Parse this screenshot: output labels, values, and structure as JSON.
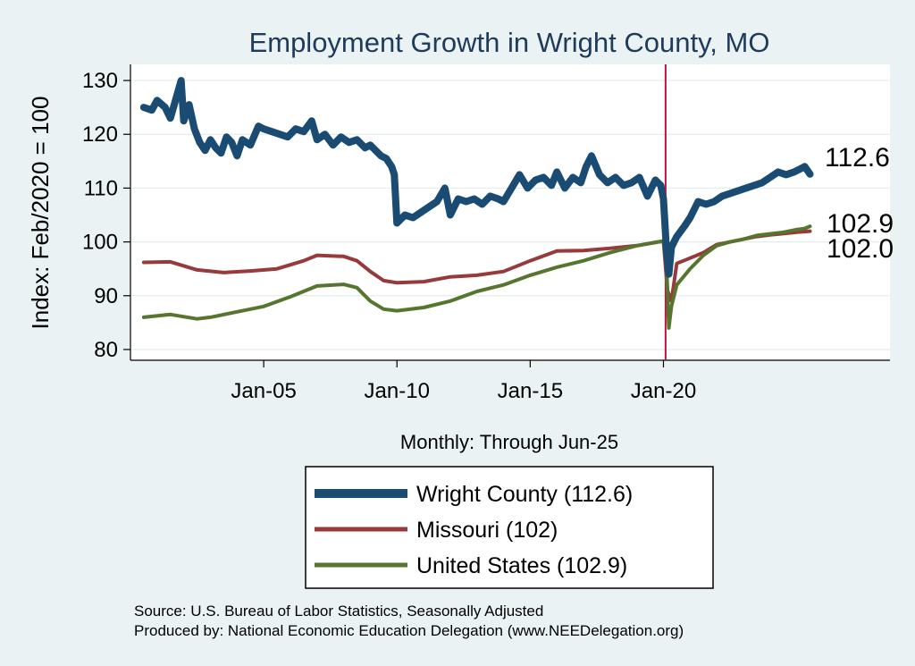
{
  "chart_data": {
    "type": "line",
    "title": "Employment Growth in Wright  County, MO",
    "ylabel": "Index: Feb/2020 = 100",
    "xlabel": "Monthly: Through Jun-25",
    "ylim": [
      78,
      133
    ],
    "xlim": [
      2000.0,
      2028.5
    ],
    "yticks": [
      80,
      90,
      100,
      110,
      120,
      130
    ],
    "xticks": [
      {
        "value": 2005,
        "label": "Jan-05"
      },
      {
        "value": 2010,
        "label": "Jan-10"
      },
      {
        "value": 2015,
        "label": "Jan-15"
      },
      {
        "value": 2020,
        "label": "Jan-20"
      }
    ],
    "reference_line": {
      "x": 2020.08,
      "color": "#c0143c"
    },
    "series": [
      {
        "name": "Wright  County",
        "legend_label": "Wright  County (112.6)",
        "end_label": "112.6",
        "color": "#1a4b72",
        "x": [
          2000.5,
          2000.8,
          2001.0,
          2001.3,
          2001.5,
          2001.7,
          2001.9,
          2002.0,
          2002.2,
          2002.4,
          2002.6,
          2002.8,
          2003.0,
          2003.2,
          2003.4,
          2003.6,
          2003.8,
          2004.0,
          2004.2,
          2004.5,
          2004.8,
          2005.0,
          2005.3,
          2005.6,
          2005.9,
          2006.2,
          2006.5,
          2006.8,
          2007.0,
          2007.3,
          2007.6,
          2007.9,
          2008.2,
          2008.5,
          2008.8,
          2009.0,
          2009.2,
          2009.4,
          2009.6,
          2009.8,
          2009.9,
          2010.0,
          2010.3,
          2010.6,
          2010.9,
          2011.2,
          2011.5,
          2011.8,
          2012.0,
          2012.3,
          2012.6,
          2012.9,
          2013.2,
          2013.5,
          2013.8,
          2014.0,
          2014.3,
          2014.6,
          2014.9,
          2015.2,
          2015.5,
          2015.8,
          2016.0,
          2016.3,
          2016.6,
          2016.9,
          2017.1,
          2017.3,
          2017.6,
          2017.9,
          2018.2,
          2018.5,
          2018.8,
          2019.1,
          2019.4,
          2019.7,
          2019.9,
          2020.0,
          2020.1,
          2020.2,
          2020.3,
          2020.5,
          2020.8,
          2021.0,
          2021.3,
          2021.6,
          2021.9,
          2022.2,
          2022.5,
          2022.8,
          2023.1,
          2023.4,
          2023.7,
          2024.0,
          2024.3,
          2024.6,
          2024.9,
          2025.1,
          2025.3,
          2025.5
        ],
        "values": [
          125.0,
          124.5,
          126.3,
          125.0,
          123.0,
          126.5,
          130.0,
          122.5,
          125.5,
          121.0,
          118.5,
          117.0,
          119.0,
          117.5,
          116.5,
          119.5,
          118.5,
          116.0,
          119.0,
          118.0,
          121.5,
          121.0,
          120.5,
          120.0,
          119.5,
          121.0,
          120.5,
          122.5,
          119.0,
          120.0,
          118.0,
          119.5,
          118.5,
          119.0,
          117.5,
          118.0,
          117.0,
          116.0,
          115.5,
          114.0,
          112.5,
          103.5,
          105.0,
          104.5,
          105.5,
          106.5,
          107.5,
          110.0,
          105.0,
          108.0,
          107.5,
          108.0,
          107.0,
          108.5,
          108.0,
          107.5,
          110.0,
          112.5,
          110.0,
          111.5,
          112.0,
          110.5,
          113.0,
          110.0,
          112.0,
          111.0,
          114.0,
          116.0,
          112.5,
          111.0,
          112.0,
          110.5,
          111.0,
          112.0,
          108.5,
          111.5,
          110.5,
          108.0,
          99.5,
          94.0,
          99.0,
          101.0,
          103.0,
          104.5,
          107.5,
          107.0,
          107.5,
          108.5,
          109.0,
          109.5,
          110.0,
          110.5,
          111.0,
          112.0,
          113.0,
          112.5,
          113.0,
          113.5,
          114.0,
          112.6
        ]
      },
      {
        "name": "Missouri",
        "legend_label": "Missouri (102)",
        "end_label": "102.0",
        "color": "#963a3c",
        "x": [
          2000.5,
          2001.5,
          2002.5,
          2003.5,
          2004.5,
          2005.5,
          2006.5,
          2007.0,
          2008.0,
          2008.5,
          2009.0,
          2009.5,
          2010.0,
          2011.0,
          2012.0,
          2013.0,
          2014.0,
          2015.0,
          2016.0,
          2017.0,
          2018.0,
          2019.0,
          2019.8,
          2020.0,
          2020.15,
          2020.3,
          2020.5,
          2021.0,
          2021.5,
          2022.0,
          2022.5,
          2023.0,
          2023.5,
          2024.0,
          2025.0,
          2025.5
        ],
        "values": [
          96.2,
          96.3,
          94.8,
          94.3,
          94.6,
          95.0,
          96.5,
          97.5,
          97.3,
          96.5,
          94.5,
          92.8,
          92.4,
          92.6,
          93.5,
          93.8,
          94.5,
          96.5,
          98.3,
          98.4,
          98.8,
          99.3,
          100.0,
          100.1,
          91.0,
          89.0,
          96.0,
          97.0,
          98.0,
          99.5,
          100.0,
          100.5,
          101.0,
          101.3,
          101.8,
          102.0
        ]
      },
      {
        "name": "United States",
        "legend_label": "United States (102.9)",
        "end_label": "102.9",
        "color": "#56752e",
        "x": [
          2000.5,
          2001.5,
          2002.5,
          2003.0,
          2004.0,
          2005.0,
          2006.0,
          2007.0,
          2008.0,
          2008.5,
          2009.0,
          2009.5,
          2010.0,
          2011.0,
          2012.0,
          2013.0,
          2014.0,
          2015.0,
          2016.0,
          2017.0,
          2018.0,
          2019.0,
          2019.8,
          2020.0,
          2020.1,
          2020.2,
          2020.3,
          2020.5,
          2021.0,
          2021.5,
          2022.0,
          2022.5,
          2023.0,
          2023.5,
          2024.0,
          2024.5,
          2025.0,
          2025.3,
          2025.5
        ],
        "values": [
          86.0,
          86.5,
          85.7,
          86.0,
          87.0,
          88.0,
          89.8,
          91.8,
          92.1,
          91.5,
          89.0,
          87.5,
          87.2,
          87.8,
          89.0,
          90.8,
          92.0,
          93.8,
          95.3,
          96.5,
          98.0,
          99.3,
          100.0,
          100.2,
          98.0,
          84.0,
          88.0,
          92.0,
          95.0,
          97.5,
          99.3,
          100.0,
          100.5,
          101.2,
          101.5,
          101.8,
          102.3,
          102.5,
          102.9
        ]
      }
    ],
    "source_line": "Source: U.S. Bureau of Labor Statistics, Seasonally Adjusted",
    "producer_line": "Produced by: National Economic Education Delegation (www.NEEDelegation.org)"
  }
}
